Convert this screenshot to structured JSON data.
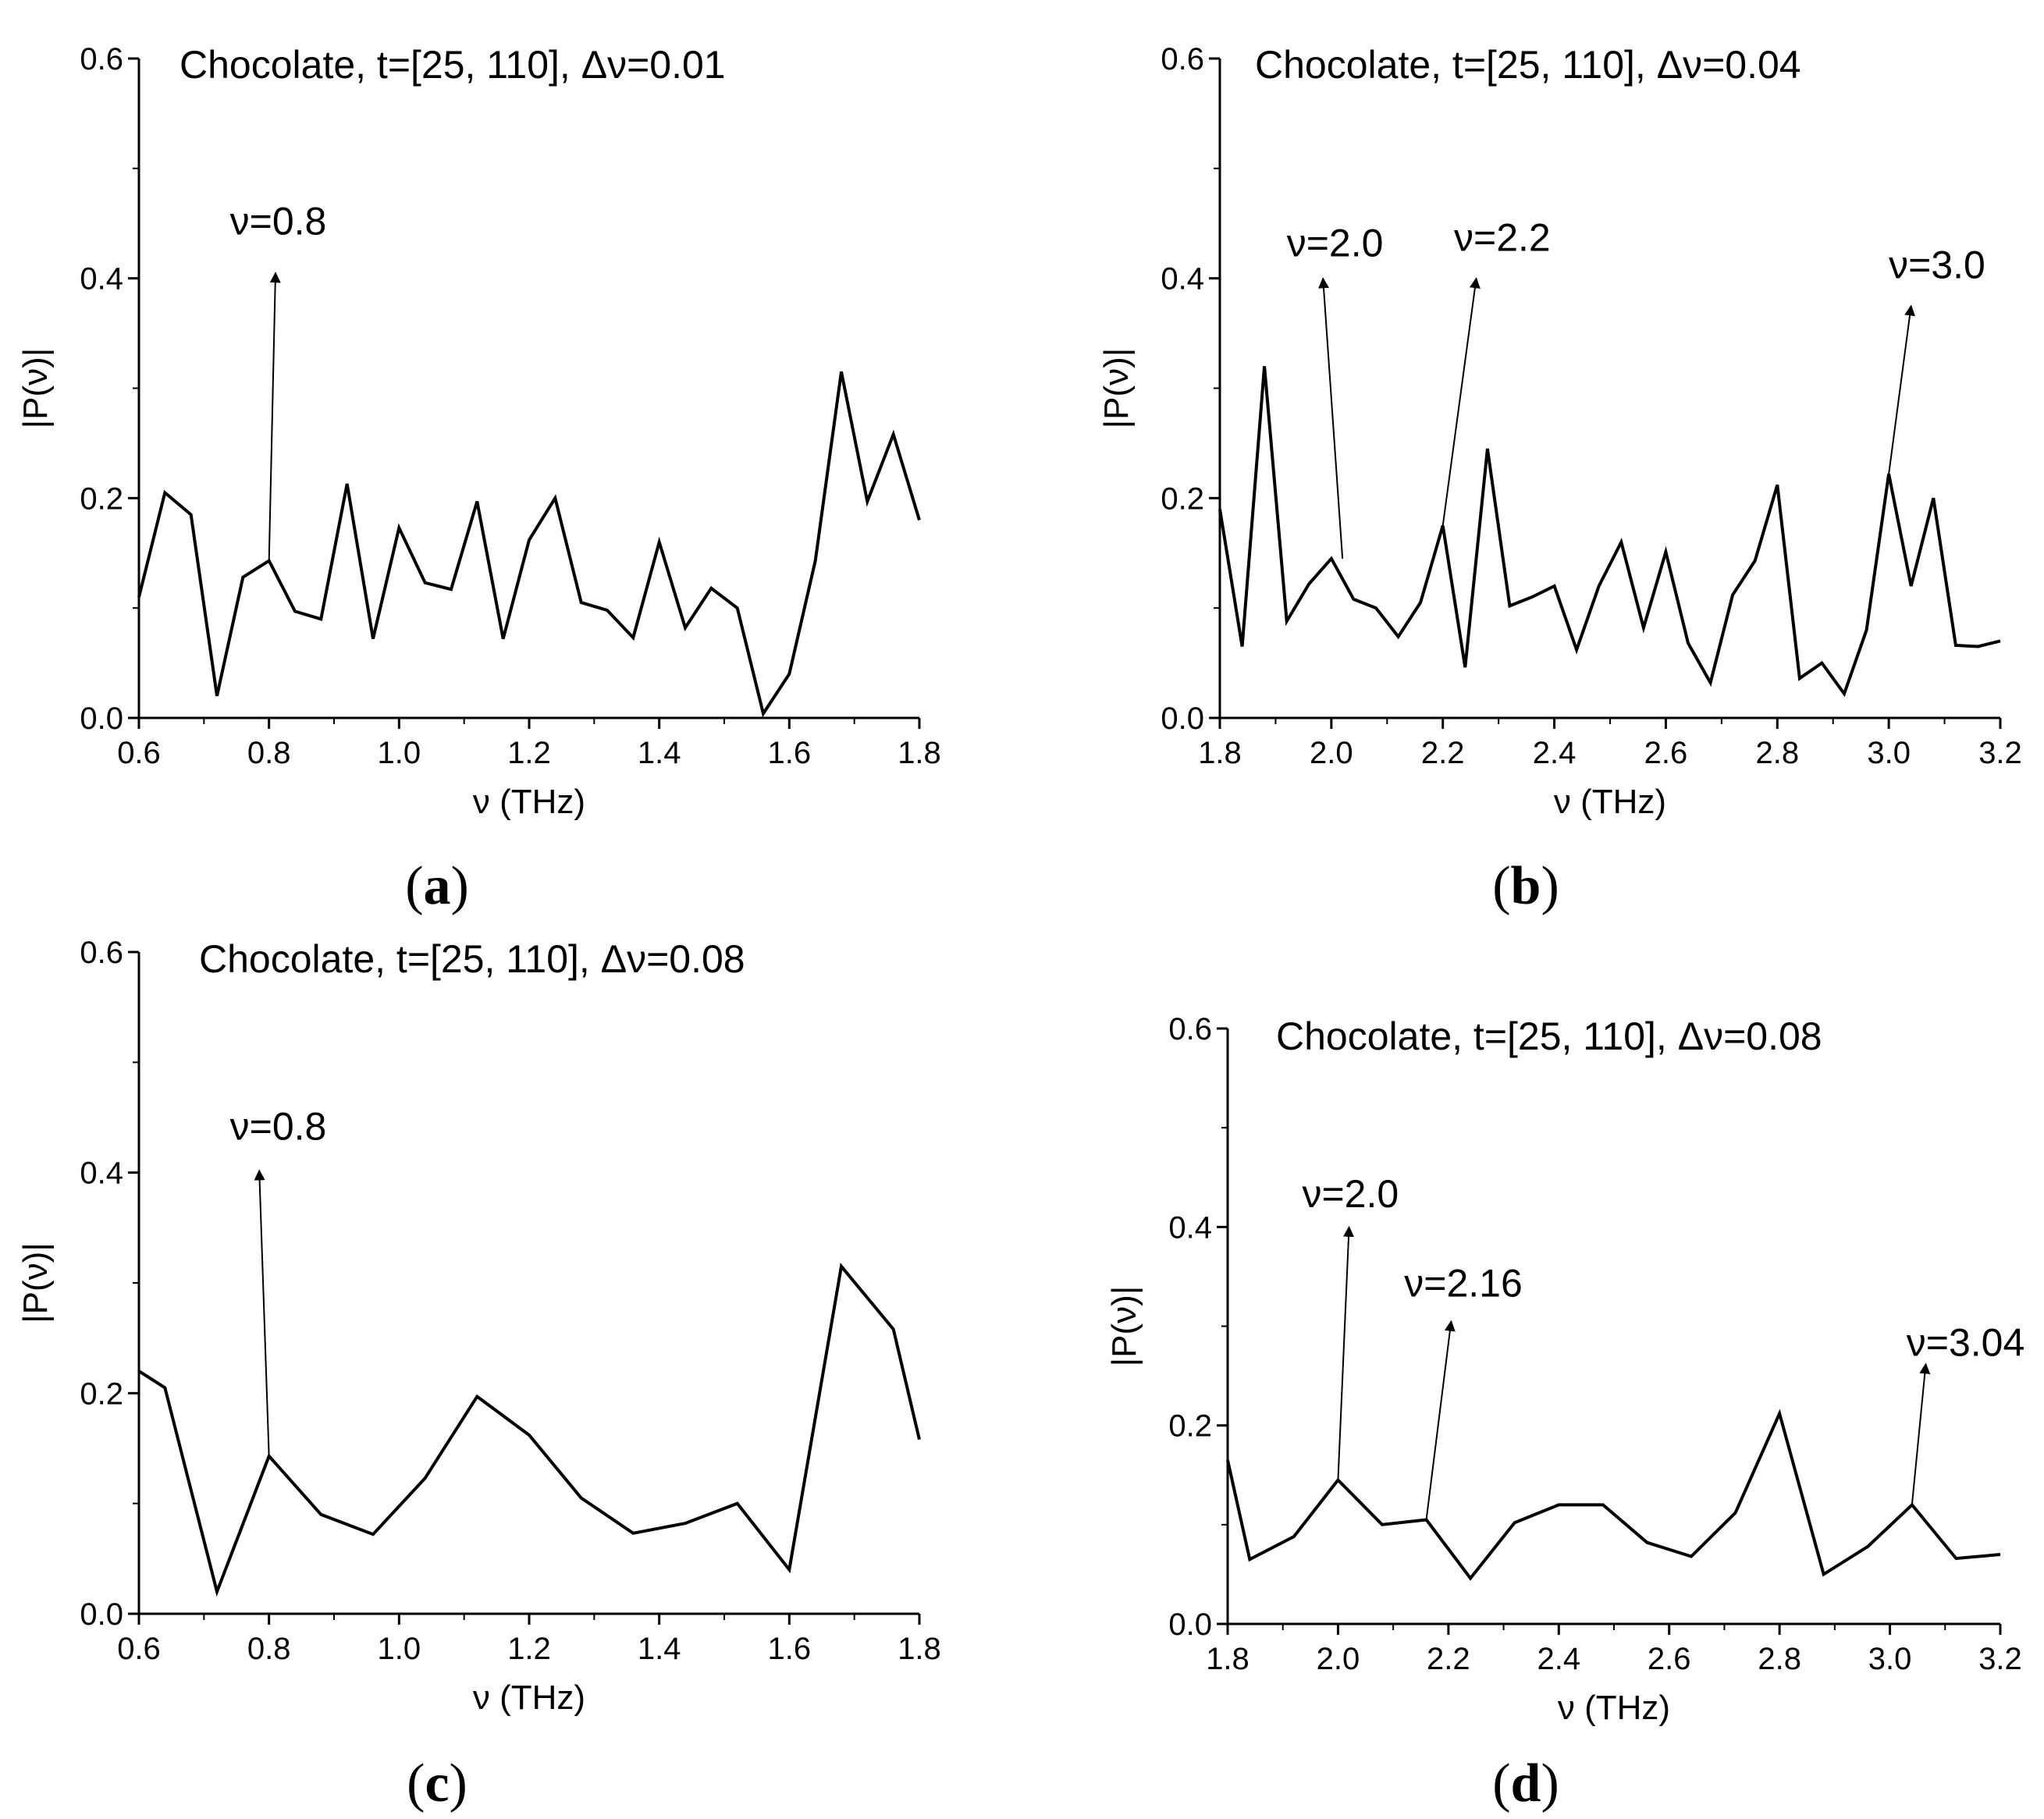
{
  "chart_data": [
    {
      "type": "line",
      "panel": "a",
      "title": "Chocolate, t=[25, 110],  Δν=0.01",
      "xlabel": "ν (THz)",
      "ylabel": "|P(ν)|",
      "xlim": [
        0.6,
        1.8
      ],
      "ylim": [
        0.0,
        0.6
      ],
      "xticks": [
        "0.6",
        "0.8",
        "1.0",
        "1.2",
        "1.4",
        "1.6",
        "1.8"
      ],
      "yticks": [
        "0.0",
        "0.2",
        "0.4",
        "0.6"
      ],
      "series": [
        {
          "name": "|P(ν)|",
          "x": [
            0.6,
            0.64,
            0.68,
            0.72,
            0.76,
            0.8,
            0.84,
            0.88,
            0.92,
            0.96,
            1.0,
            1.04,
            1.08,
            1.12,
            1.16,
            1.2,
            1.24,
            1.28,
            1.32,
            1.36,
            1.4,
            1.44,
            1.48,
            1.52,
            1.56,
            1.6,
            1.64,
            1.68,
            1.72,
            1.76,
            1.8
          ],
          "y": [
            0.11,
            0.205,
            0.185,
            0.02,
            0.128,
            0.143,
            0.097,
            0.09,
            0.213,
            0.072,
            0.173,
            0.123,
            0.117,
            0.197,
            0.072,
            0.162,
            0.2,
            0.105,
            0.098,
            0.073,
            0.16,
            0.082,
            0.118,
            0.1,
            0.004,
            0.04,
            0.143,
            0.315,
            0.197,
            0.258,
            0.18
          ]
        }
      ],
      "annotations": [
        {
          "text": "ν=0.8",
          "from": [
            0.8,
            0.143
          ],
          "to": [
            0.81,
            0.405
          ],
          "text_at": [
            0.74,
            0.44
          ]
        }
      ]
    },
    {
      "type": "line",
      "panel": "b",
      "title": "Chocolate, t=[25, 110],  Δν=0.04",
      "xlabel": "ν (THz)",
      "ylabel": "|P(ν)|",
      "xlim": [
        1.8,
        3.2
      ],
      "ylim": [
        0.0,
        0.6
      ],
      "xticks": [
        "1.8",
        "2.0",
        "2.2",
        "2.4",
        "2.6",
        "2.8",
        "3.0",
        "3.2"
      ],
      "yticks": [
        "0.0",
        "0.2",
        "0.4",
        "0.6"
      ],
      "series": [
        {
          "name": "|P(ν)|",
          "x": [
            1.8,
            1.84,
            1.88,
            1.92,
            1.96,
            2.0,
            2.04,
            2.08,
            2.12,
            2.16,
            2.2,
            2.24,
            2.28,
            2.32,
            2.36,
            2.4,
            2.44,
            2.48,
            2.52,
            2.56,
            2.6,
            2.64,
            2.68,
            2.72,
            2.76,
            2.8,
            2.84,
            2.88,
            2.92,
            2.96,
            3.0,
            3.04,
            3.08,
            3.12,
            3.16,
            3.2
          ],
          "y": [
            0.19,
            0.065,
            0.32,
            0.088,
            0.122,
            0.145,
            0.108,
            0.1,
            0.074,
            0.105,
            0.175,
            0.046,
            0.245,
            0.102,
            0.11,
            0.12,
            0.062,
            0.12,
            0.16,
            0.082,
            0.151,
            0.068,
            0.032,
            0.112,
            0.143,
            0.212,
            0.036,
            0.05,
            0.022,
            0.08,
            0.222,
            0.12,
            0.2,
            0.066,
            0.065,
            0.07
          ]
        }
      ],
      "annotations": [
        {
          "text": "ν=2.0",
          "from": [
            2.02,
            0.145
          ],
          "to": [
            1.985,
            0.4
          ],
          "text_at": [
            1.92,
            0.42
          ]
        },
        {
          "text": "ν=2.2",
          "from": [
            2.2,
            0.175
          ],
          "to": [
            2.26,
            0.4
          ],
          "text_at": [
            2.22,
            0.425
          ]
        },
        {
          "text": "ν=3.0",
          "from": [
            3.0,
            0.222
          ],
          "to": [
            3.04,
            0.375
          ],
          "text_at": [
            3.0,
            0.4
          ]
        }
      ]
    },
    {
      "type": "line",
      "panel": "c",
      "title": "Chocolate, t=[25, 110],  Δν=0.08",
      "xlabel": "ν (THz)",
      "ylabel": "|P(ν)|",
      "xlim": [
        0.6,
        1.8
      ],
      "ylim": [
        0.0,
        0.6
      ],
      "xticks": [
        "0.6",
        "0.8",
        "1.0",
        "1.2",
        "1.4",
        "1.6",
        "1.8"
      ],
      "yticks": [
        "0.0",
        "0.2",
        "0.4",
        "0.6"
      ],
      "series": [
        {
          "name": "|P(ν)|",
          "x": [
            0.6,
            0.64,
            0.72,
            0.8,
            0.88,
            0.96,
            1.04,
            1.12,
            1.2,
            1.28,
            1.36,
            1.44,
            1.52,
            1.6,
            1.68,
            1.76,
            1.8
          ],
          "y": [
            0.22,
            0.205,
            0.02,
            0.143,
            0.09,
            0.072,
            0.123,
            0.197,
            0.162,
            0.105,
            0.073,
            0.082,
            0.1,
            0.04,
            0.315,
            0.258,
            0.158
          ]
        }
      ],
      "annotations": [
        {
          "text": "ν=0.8",
          "from": [
            0.8,
            0.143
          ],
          "to": [
            0.785,
            0.402
          ],
          "text_at": [
            0.74,
            0.43
          ]
        }
      ]
    },
    {
      "type": "line",
      "panel": "d",
      "title": "Chocolate, t=[25, 110],  Δν=0.08",
      "xlabel": "ν (THz)",
      "ylabel": "|P(ν)|",
      "xlim": [
        1.8,
        3.2
      ],
      "ylim": [
        0.0,
        0.6
      ],
      "xticks": [
        "1.8",
        "2.0",
        "2.2",
        "2.4",
        "2.6",
        "2.8",
        "3.0",
        "3.2"
      ],
      "yticks": [
        "0.0",
        "0.2",
        "0.4",
        "0.6"
      ],
      "series": [
        {
          "name": "|P(ν)|",
          "x": [
            1.8,
            1.84,
            1.92,
            2.0,
            2.08,
            2.16,
            2.24,
            2.32,
            2.4,
            2.48,
            2.56,
            2.64,
            2.72,
            2.8,
            2.88,
            2.96,
            3.04,
            3.12,
            3.2
          ],
          "y": [
            0.165,
            0.065,
            0.088,
            0.145,
            0.1,
            0.105,
            0.046,
            0.102,
            0.12,
            0.12,
            0.082,
            0.068,
            0.112,
            0.212,
            0.05,
            0.078,
            0.12,
            0.066,
            0.07
          ]
        }
      ],
      "annotations": [
        {
          "text": "ν=2.0",
          "from": [
            2.0,
            0.145
          ],
          "to": [
            2.02,
            0.4
          ],
          "text_at": [
            1.935,
            0.42
          ]
        },
        {
          "text": "ν=2.16",
          "from": [
            2.16,
            0.105
          ],
          "to": [
            2.205,
            0.305
          ],
          "text_at": [
            2.12,
            0.33
          ]
        },
        {
          "text": "ν=3.04",
          "from": [
            3.04,
            0.12
          ],
          "to": [
            3.065,
            0.262
          ],
          "text_at": [
            3.03,
            0.27
          ]
        }
      ]
    }
  ],
  "panel_labels": {
    "a": [
      "(",
      "a",
      ")"
    ],
    "b": [
      "(",
      "b",
      ")"
    ],
    "c": [
      "(",
      "c",
      ")"
    ],
    "d": [
      "(",
      "d",
      ")"
    ]
  }
}
